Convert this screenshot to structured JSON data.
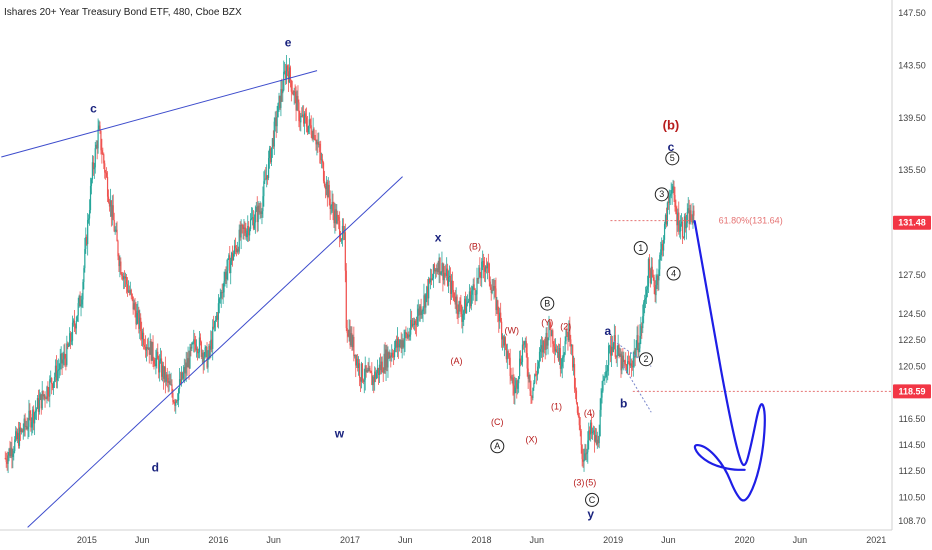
{
  "chart_data": {
    "type": "candlestick",
    "title": "Ishares 20+ Year Treasury Bond ETF, 480, Cboe BZX",
    "ylim": [
      108.0,
      148.5
    ],
    "y_ticks": [
      108.7,
      110.5,
      112.5,
      114.5,
      116.5,
      118.5,
      120.5,
      122.5,
      124.5,
      127.5,
      131.5,
      135.5,
      139.5,
      143.5,
      147.5
    ],
    "y_tick_labels": [
      "108.70",
      "110.50",
      "112.50",
      "114.50",
      "116.50",
      "118.50",
      "120.50",
      "122.50",
      "124.50",
      "127.50",
      "131.50",
      "135.50",
      "139.50",
      "143.50",
      "147.50"
    ],
    "x_ticks": [
      {
        "label": "2015",
        "t": 2015.0
      },
      {
        "label": "Jun",
        "t": 2015.42
      },
      {
        "label": "2016",
        "t": 2016.0
      },
      {
        "label": "Jun",
        "t": 2016.42
      },
      {
        "label": "2017",
        "t": 2017.0
      },
      {
        "label": "Jun",
        "t": 2017.42
      },
      {
        "label": "2018",
        "t": 2018.0
      },
      {
        "label": "Jun",
        "t": 2018.42
      },
      {
        "label": "2019",
        "t": 2019.0
      },
      {
        "label": "Jun",
        "t": 2019.42
      },
      {
        "label": "2020",
        "t": 2020.0
      },
      {
        "label": "Jun",
        "t": 2020.42
      },
      {
        "label": "2021",
        "t": 2021.0
      }
    ],
    "price_path": [
      [
        2014.38,
        113.5
      ],
      [
        2014.6,
        117.0
      ],
      [
        2014.85,
        121.5
      ],
      [
        2014.96,
        126.0
      ],
      [
        2015.04,
        135.2
      ],
      [
        2015.09,
        138.5
      ],
      [
        2015.25,
        128.5
      ],
      [
        2015.42,
        123.0
      ],
      [
        2015.58,
        120.0
      ],
      [
        2015.67,
        118.0
      ],
      [
        2015.83,
        122.5
      ],
      [
        2015.92,
        121.0
      ],
      [
        2016.05,
        127.5
      ],
      [
        2016.17,
        130.5
      ],
      [
        2016.32,
        132.5
      ],
      [
        2016.47,
        141.0
      ],
      [
        2016.52,
        143.5
      ],
      [
        2016.62,
        139.5
      ],
      [
        2016.73,
        138.5
      ],
      [
        2016.85,
        133.0
      ],
      [
        2016.96,
        130.0
      ],
      [
        2016.97,
        124.0
      ],
      [
        2017.08,
        120.0
      ],
      [
        2017.17,
        119.5
      ],
      [
        2017.3,
        121.5
      ],
      [
        2017.45,
        123.0
      ],
      [
        2017.58,
        126.0
      ],
      [
        2017.67,
        128.5
      ],
      [
        2017.75,
        127.0
      ],
      [
        2017.85,
        124.5
      ],
      [
        2017.97,
        127.0
      ],
      [
        2018.03,
        128.5
      ],
      [
        2018.12,
        125.0
      ],
      [
        2018.25,
        118.5
      ],
      [
        2018.32,
        122.5
      ],
      [
        2018.38,
        118.5
      ],
      [
        2018.45,
        121.5
      ],
      [
        2018.52,
        123.5
      ],
      [
        2018.6,
        121.0
      ],
      [
        2018.67,
        123.5
      ],
      [
        2018.72,
        117.5
      ],
      [
        2018.77,
        113.5
      ],
      [
        2018.83,
        115.5
      ],
      [
        2018.88,
        114.5
      ],
      [
        2018.94,
        120.5
      ],
      [
        2019.0,
        122.5
      ],
      [
        2019.07,
        120.5
      ],
      [
        2019.13,
        120.5
      ],
      [
        2019.21,
        123.0
      ],
      [
        2019.27,
        128.0
      ],
      [
        2019.32,
        126.5
      ],
      [
        2019.4,
        131.5
      ],
      [
        2019.44,
        134.5
      ],
      [
        2019.48,
        132.0
      ],
      [
        2019.53,
        131.0
      ],
      [
        2019.58,
        132.0
      ],
      [
        2019.62,
        131.5
      ]
    ],
    "wave_labels": [
      {
        "text": "c",
        "t": 2015.05,
        "y": 140.15,
        "color": "#1a237e",
        "size": 12
      },
      {
        "text": "e",
        "t": 2016.53,
        "y": 145.2,
        "color": "#1a237e",
        "size": 12
      },
      {
        "text": "d",
        "t": 2015.52,
        "y": 112.7,
        "color": "#1a237e",
        "size": 12
      },
      {
        "text": "x",
        "t": 2017.67,
        "y": 130.3,
        "color": "#1a237e",
        "size": 12
      },
      {
        "text": "w",
        "t": 2016.92,
        "y": 115.3,
        "color": "#1a237e",
        "size": 12
      },
      {
        "text": "y",
        "t": 2018.83,
        "y": 109.15,
        "color": "#1a237e",
        "size": 12
      },
      {
        "text": "a",
        "t": 2018.96,
        "y": 123.15,
        "color": "#1a237e",
        "size": 12
      },
      {
        "text": "b",
        "t": 2019.08,
        "y": 117.6,
        "color": "#1a237e",
        "size": 12
      },
      {
        "text": "c",
        "t": 2019.44,
        "y": 137.2,
        "color": "#1a237e",
        "size": 12
      },
      {
        "text": "(b)",
        "t": 2019.44,
        "y": 138.85,
        "color": "#b71c1c",
        "size": 13
      },
      {
        "text": "(B)",
        "t": 2017.95,
        "y": 129.6,
        "color": "#b71c1c",
        "size": 9
      },
      {
        "text": "(A)",
        "t": 2017.81,
        "y": 120.85,
        "color": "#b71c1c",
        "size": 9
      },
      {
        "text": "(W)",
        "t": 2018.23,
        "y": 123.2,
        "color": "#b71c1c",
        "size": 9
      },
      {
        "text": "(Y)",
        "t": 2018.5,
        "y": 123.8,
        "color": "#b71c1c",
        "size": 9
      },
      {
        "text": "(2)",
        "t": 2018.64,
        "y": 123.5,
        "color": "#b71c1c",
        "size": 9
      },
      {
        "text": "(X)",
        "t": 2018.38,
        "y": 114.85,
        "color": "#b71c1c",
        "size": 9
      },
      {
        "text": "(C)",
        "t": 2018.12,
        "y": 116.2,
        "color": "#b71c1c",
        "size": 9
      },
      {
        "text": "(1)",
        "t": 2018.57,
        "y": 117.4,
        "color": "#b71c1c",
        "size": 9
      },
      {
        "text": "(4)",
        "t": 2018.82,
        "y": 116.9,
        "color": "#b71c1c",
        "size": 9
      },
      {
        "text": "(3)",
        "t": 2018.74,
        "y": 111.6,
        "color": "#b71c1c",
        "size": 9
      },
      {
        "text": "(5)",
        "t": 2018.83,
        "y": 111.6,
        "color": "#b71c1c",
        "size": 9
      }
    ],
    "circled_labels": [
      {
        "text": "B",
        "t": 2018.5,
        "y": 125.3
      },
      {
        "text": "A",
        "t": 2018.12,
        "y": 114.4
      },
      {
        "text": "C",
        "t": 2018.84,
        "y": 110.3
      },
      {
        "text": "1",
        "t": 2019.21,
        "y": 129.55
      },
      {
        "text": "2",
        "t": 2019.25,
        "y": 121.05
      },
      {
        "text": "3",
        "t": 2019.37,
        "y": 133.65
      },
      {
        "text": "4",
        "t": 2019.46,
        "y": 127.6
      },
      {
        "text": "5",
        "t": 2019.45,
        "y": 136.4
      }
    ],
    "trendlines": [
      {
        "from": [
          2014.35,
          136.5
        ],
        "to": [
          2016.75,
          143.1
        ],
        "color": "#3d4ccc"
      },
      {
        "from": [
          2014.55,
          108.2
        ],
        "to": [
          2017.4,
          135.0
        ],
        "color": "#3d4ccc"
      },
      {
        "from": [
          2018.98,
          122.6
        ],
        "to": [
          2019.29,
          120.5
        ],
        "color": "#7986cb",
        "dashed": true
      },
      {
        "from": [
          2019.08,
          120.5
        ],
        "to": [
          2019.29,
          117.0
        ],
        "color": "#7986cb",
        "dashed": true
      }
    ],
    "projection_path": [
      [
        2019.62,
        131.6
      ],
      [
        2019.77,
        123.0
      ],
      [
        2019.87,
        117.5
      ],
      [
        2019.95,
        113.8
      ],
      [
        2020.0,
        112.6
      ],
      [
        2020.05,
        114.5
      ],
      [
        2020.12,
        118.0
      ],
      [
        2020.16,
        117.0
      ],
      [
        2020.14,
        114.0
      ],
      [
        2020.08,
        111.5
      ],
      [
        2020.0,
        110.0
      ],
      [
        2019.93,
        110.8
      ],
      [
        2019.85,
        112.8
      ],
      [
        2019.72,
        114.3
      ],
      [
        2019.61,
        114.6
      ],
      [
        2019.64,
        113.8
      ],
      [
        2019.75,
        113.0
      ],
      [
        2019.9,
        112.6
      ],
      [
        2020.0,
        112.6
      ]
    ],
    "fib_level": {
      "label": "61.80%(131.64)",
      "value": 131.64,
      "t0": 2018.98,
      "t1": 2019.62,
      "color": "#e57373"
    },
    "level_line": {
      "value": 118.59,
      "t0": 2019.15,
      "color": "#e57373"
    },
    "price_badges": [
      {
        "label": "131.48",
        "value": 131.48,
        "color": "#f23645"
      },
      {
        "label": "118.59",
        "value": 118.59,
        "color": "#f23645"
      }
    ],
    "colors": {
      "up": "#26a69a",
      "down": "#ef5350",
      "axis_text": "#444444",
      "wave_blue": "#1a237e",
      "wave_red": "#b71c1c",
      "projection": "#1e1ee6"
    }
  }
}
